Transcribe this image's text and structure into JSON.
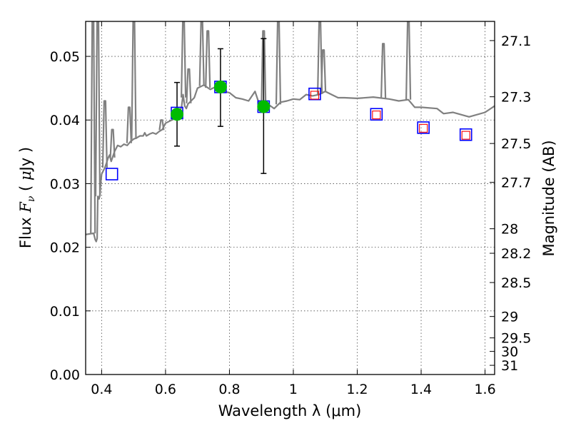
{
  "chart_data": {
    "type": "scatter",
    "xlabel": "Wavelength  λ (μm)",
    "ylabel": "Flux  F_ν  ( μJy )",
    "ylabel_parts": {
      "prefix": "Flux  ",
      "var": "F",
      "sub": "ν",
      "unit_open": "  ( ",
      "unit_mu": "μ",
      "unit_rest": "Jy )"
    },
    "y2label": "Magnitude (AB)",
    "xlim": [
      0.35,
      1.63
    ],
    "ylim": [
      0.0,
      0.0555
    ],
    "grid": true,
    "x_ticks": [
      {
        "value": 0.4,
        "label": "0.4"
      },
      {
        "value": 0.6,
        "label": "0.6"
      },
      {
        "value": 0.8,
        "label": "0.8"
      },
      {
        "value": 1.0,
        "label": "1"
      },
      {
        "value": 1.2,
        "label": "1.2"
      },
      {
        "value": 1.4,
        "label": "1.4"
      },
      {
        "value": 1.6,
        "label": "1.6"
      }
    ],
    "y_ticks": [
      {
        "value": 0.0,
        "label": "0.00"
      },
      {
        "value": 0.01,
        "label": "0.01"
      },
      {
        "value": 0.02,
        "label": "0.02"
      },
      {
        "value": 0.03,
        "label": "0.03"
      },
      {
        "value": 0.04,
        "label": "0.04"
      },
      {
        "value": 0.05,
        "label": "0.05"
      }
    ],
    "mag_ticks": [
      {
        "value": 27.1,
        "label": "27.1"
      },
      {
        "value": 27.3,
        "label": "27.3"
      },
      {
        "value": 27.5,
        "label": "27.5"
      },
      {
        "value": 27.7,
        "label": "27.7"
      },
      {
        "value": 28.0,
        "label": "28"
      },
      {
        "value": 28.2,
        "label": "28.2"
      },
      {
        "value": 28.5,
        "label": "28.5"
      },
      {
        "value": 29.0,
        "label": "29"
      },
      {
        "value": 29.5,
        "label": "29.5"
      },
      {
        "value": 30.0,
        "label": "30"
      },
      {
        "value": 31.0,
        "label": "31"
      }
    ],
    "series": [
      {
        "name": "model spectrum",
        "kind": "line",
        "color": "#808080",
        "x": [
          0.35,
          0.375,
          0.38,
          0.383,
          0.386,
          0.388,
          0.39,
          0.392,
          0.395,
          0.397,
          0.4,
          0.405,
          0.41,
          0.415,
          0.42,
          0.425,
          0.43,
          0.44,
          0.45,
          0.46,
          0.47,
          0.48,
          0.49,
          0.5,
          0.51,
          0.52,
          0.53,
          0.535,
          0.54,
          0.55,
          0.56,
          0.57,
          0.58,
          0.59,
          0.6,
          0.62,
          0.64,
          0.65,
          0.655,
          0.66,
          0.665,
          0.67,
          0.68,
          0.69,
          0.7,
          0.72,
          0.74,
          0.76,
          0.78,
          0.8,
          0.82,
          0.84,
          0.86,
          0.88,
          0.9,
          0.92,
          0.94,
          0.96,
          0.98,
          1.0,
          1.02,
          1.04,
          1.06,
          1.08,
          1.1,
          1.12,
          1.14,
          1.16,
          1.2,
          1.25,
          1.3,
          1.33,
          1.36,
          1.38,
          1.4,
          1.45,
          1.47,
          1.5,
          1.55,
          1.6,
          1.63
        ],
        "y": [
          0.022,
          0.0222,
          0.0212,
          0.0209,
          0.0214,
          0.028,
          0.0278,
          0.0276,
          0.0283,
          0.03,
          0.0315,
          0.032,
          0.0325,
          0.0332,
          0.034,
          0.0345,
          0.0335,
          0.035,
          0.036,
          0.0358,
          0.0362,
          0.036,
          0.0366,
          0.037,
          0.0372,
          0.0375,
          0.0375,
          0.038,
          0.0375,
          0.0378,
          0.038,
          0.0378,
          0.0382,
          0.0385,
          0.0395,
          0.04,
          0.041,
          0.042,
          0.044,
          0.0422,
          0.0418,
          0.0425,
          0.043,
          0.0435,
          0.045,
          0.0455,
          0.0448,
          0.0453,
          0.0445,
          0.0443,
          0.0435,
          0.0433,
          0.043,
          0.0445,
          0.0415,
          0.0425,
          0.0418,
          0.0428,
          0.043,
          0.0433,
          0.0432,
          0.044,
          0.0438,
          0.044,
          0.0445,
          0.044,
          0.0435,
          0.0435,
          0.0434,
          0.0436,
          0.0433,
          0.043,
          0.0432,
          0.042,
          0.042,
          0.0418,
          0.041,
          0.0412,
          0.0405,
          0.0412,
          0.0422
        ]
      },
      {
        "name": "observed photometry",
        "kind": "points_errorbar",
        "color": "#00bb00",
        "x": [
          0.636,
          0.772,
          0.907
        ],
        "y": [
          0.0409,
          0.0452,
          0.0421
        ],
        "yerr_low": [
          0.005,
          0.0062,
          0.0105
        ],
        "yerr_high": [
          0.005,
          0.006,
          0.0107
        ]
      },
      {
        "name": "model photometry (blue squares)",
        "kind": "points",
        "color": "#0000ff",
        "x": [
          0.432,
          0.636,
          0.772,
          0.907,
          1.067,
          1.26,
          1.407,
          1.54
        ],
        "y": [
          0.0315,
          0.0411,
          0.0452,
          0.0421,
          0.0441,
          0.0409,
          0.0388,
          0.0377
        ]
      },
      {
        "name": "predicted photometry (red squares)",
        "kind": "points",
        "color": "#ff0000",
        "x": [
          1.067,
          1.26,
          1.407,
          1.54
        ],
        "y": [
          0.0439,
          0.0408,
          0.0387,
          0.0376
        ]
      }
    ],
    "emission_lines": [
      {
        "x": 0.3727,
        "peak": 0.0555
      },
      {
        "x": 0.388,
        "peak": 0.0555
      },
      {
        "x": 0.4101,
        "peak": 0.043
      },
      {
        "x": 0.434,
        "peak": 0.0385
      },
      {
        "x": 0.4861,
        "peak": 0.042
      },
      {
        "x": 0.5007,
        "peak": 0.0555
      },
      {
        "x": 0.5876,
        "peak": 0.04
      },
      {
        "x": 0.6563,
        "peak": 0.0555
      },
      {
        "x": 0.6725,
        "peak": 0.048
      },
      {
        "x": 0.7135,
        "peak": 0.0555
      },
      {
        "x": 0.7325,
        "peak": 0.054
      },
      {
        "x": 0.9069,
        "peak": 0.054
      },
      {
        "x": 0.9531,
        "peak": 0.0555
      },
      {
        "x": 1.083,
        "peak": 0.0555
      },
      {
        "x": 1.0941,
        "peak": 0.051
      },
      {
        "x": 1.2818,
        "peak": 0.052
      },
      {
        "x": 1.36,
        "peak": 0.0555
      }
    ]
  }
}
